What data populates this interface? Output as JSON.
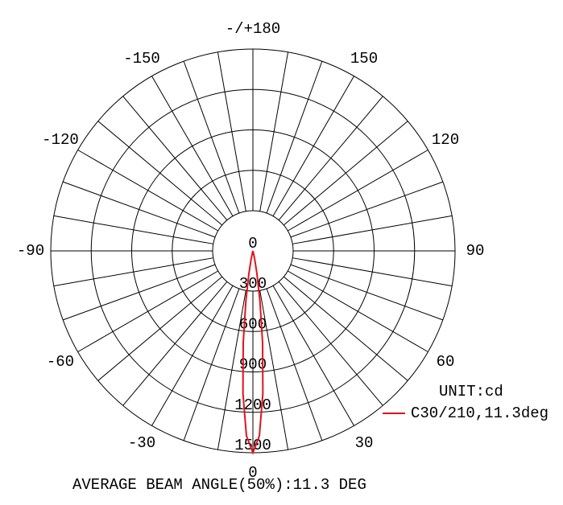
{
  "chart_data": {
    "type": "polar",
    "unit_label": "UNIT:cd",
    "footer": "AVERAGE BEAM ANGLE(50%):11.3 DEG",
    "rlim": [
      0,
      1500
    ],
    "rticks": [
      0,
      300,
      600,
      900,
      1200,
      1500
    ],
    "thetaticks": [
      0,
      30,
      60,
      90,
      120,
      150,
      {
        "value": 180,
        "label": "-/+180"
      },
      -150,
      -120,
      -90,
      -60,
      -30
    ],
    "series": [
      {
        "name": "C30/210,11.3deg",
        "color": "#e0141e",
        "theta": [
          -20,
          -15,
          -12,
          -10,
          -8,
          -6,
          -4,
          -2,
          0,
          2,
          4,
          6,
          8,
          10,
          12,
          15,
          20
        ],
        "values": [
          0,
          11,
          66,
          171,
          374,
          687,
          1060,
          1375,
          1500,
          1375,
          1060,
          687,
          374,
          171,
          66,
          11,
          0
        ]
      }
    ]
  }
}
